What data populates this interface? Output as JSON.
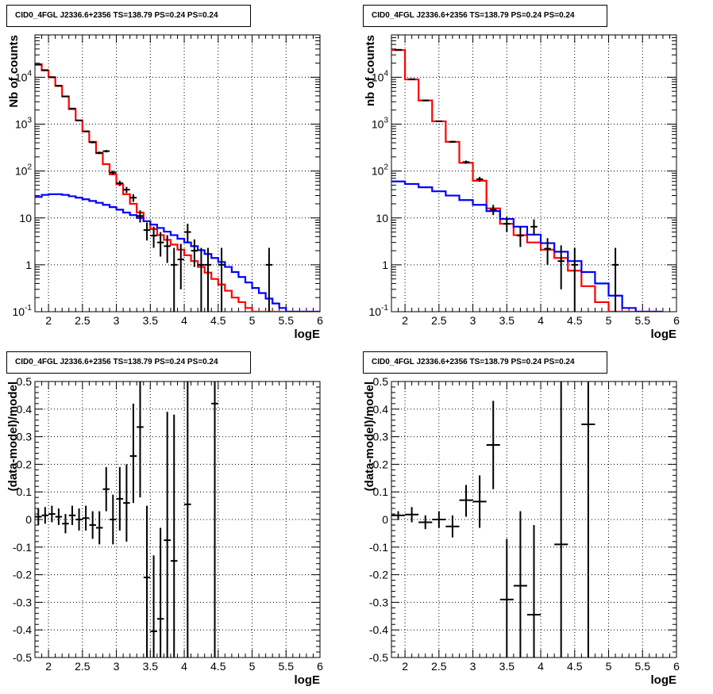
{
  "chart_data": [
    {
      "id": "top-left",
      "type": "line",
      "title": "CID0_4FGL J2336.6+2356 TS=138.79 PS=0.24 PS=0.24",
      "xlabel": "logE",
      "ylabel": "Nb of counts",
      "xlim": [
        1.8,
        6.0
      ],
      "ylim": [
        0.1,
        80000
      ],
      "yscale": "log",
      "grid": true,
      "x_ticks": [
        2,
        2.5,
        3,
        3.5,
        4,
        4.5,
        5,
        5.5,
        6
      ],
      "y_ticks": [
        {
          "value": 0.1,
          "label": "10^-1"
        },
        {
          "value": 1,
          "label": "1"
        },
        {
          "value": 10,
          "label": "10"
        },
        {
          "value": 100,
          "label": "10^2"
        },
        {
          "value": 1000,
          "label": "10^3"
        },
        {
          "value": 10000,
          "label": "10^4"
        }
      ],
      "bin_edges": [
        1.8,
        1.9,
        2.0,
        2.1,
        2.2,
        2.3,
        2.4,
        2.5,
        2.6,
        2.7,
        2.8,
        2.9,
        3.0,
        3.1,
        3.2,
        3.3,
        3.4,
        3.5,
        3.6,
        3.7,
        3.8,
        3.9,
        4.0,
        4.1,
        4.2,
        4.3,
        4.4,
        4.5,
        4.6,
        4.7,
        4.8,
        4.9,
        5.0,
        5.1,
        5.2,
        5.3,
        5.4,
        5.5,
        5.6,
        5.7,
        5.8,
        5.9,
        6.0
      ],
      "series": [
        {
          "color": "#ff0000",
          "style": "step",
          "values": [
            19000,
            14000,
            10000,
            6500,
            3900,
            2100,
            1200,
            700,
            420,
            240,
            140,
            85,
            52,
            32,
            20,
            13,
            8.5,
            5.8,
            4.3,
            3.4,
            2.7,
            2.1,
            1.6,
            1.2,
            0.9,
            0.68,
            0.5,
            0.38,
            0.28,
            0.2,
            0.16,
            0.12,
            0.1,
            0.1,
            0.1,
            0.1,
            0.1,
            0.1,
            0.1,
            0.1,
            0.1,
            0.1
          ]
        },
        {
          "color": "#0000ff",
          "style": "step",
          "values": [
            28,
            31,
            32,
            32,
            31,
            29,
            27,
            25,
            23,
            21,
            19,
            17,
            15,
            13,
            11.5,
            10,
            8.5,
            7.2,
            6.1,
            5.1,
            4.3,
            3.6,
            3.0,
            2.5,
            2.05,
            1.7,
            1.4,
            1.15,
            0.9,
            0.7,
            0.55,
            0.42,
            0.32,
            0.25,
            0.19,
            0.15,
            0.12,
            0.1,
            0.1,
            0.1,
            0.1,
            0.1
          ]
        }
      ],
      "points": [
        {
          "x": 1.85,
          "y": 18500,
          "lo": 18200,
          "hi": 18800
        },
        {
          "x": 1.95,
          "y": 14200,
          "lo": 14000,
          "hi": 14400
        },
        {
          "x": 2.05,
          "y": 10000,
          "lo": 9900,
          "hi": 10100
        },
        {
          "x": 2.15,
          "y": 6600,
          "lo": 6500,
          "hi": 6700
        },
        {
          "x": 2.25,
          "y": 3900,
          "lo": 3850,
          "hi": 3950
        },
        {
          "x": 2.35,
          "y": 2150,
          "lo": 2100,
          "hi": 2200
        },
        {
          "x": 2.45,
          "y": 1200,
          "lo": 1170,
          "hi": 1230
        },
        {
          "x": 2.55,
          "y": 700,
          "lo": 680,
          "hi": 720
        },
        {
          "x": 2.65,
          "y": 410,
          "lo": 390,
          "hi": 430
        },
        {
          "x": 2.75,
          "y": 245,
          "lo": 230,
          "hi": 260
        },
        {
          "x": 2.85,
          "y": 265,
          "lo": 250,
          "hi": 282
        },
        {
          "x": 2.95,
          "y": 93,
          "lo": 84,
          "hi": 102
        },
        {
          "x": 3.05,
          "y": 55,
          "lo": 48,
          "hi": 62
        },
        {
          "x": 3.15,
          "y": 40,
          "lo": 34,
          "hi": 46
        },
        {
          "x": 3.25,
          "y": 27,
          "lo": 22,
          "hi": 32
        },
        {
          "x": 3.35,
          "y": 11,
          "lo": 8,
          "hi": 14.5
        },
        {
          "x": 3.45,
          "y": 5.5,
          "lo": 3.3,
          "hi": 8
        },
        {
          "x": 3.55,
          "y": 4.2,
          "lo": 2.3,
          "hi": 6.5
        },
        {
          "x": 3.65,
          "y": 3,
          "lo": 1.5,
          "hi": 5
        },
        {
          "x": 3.75,
          "y": 2.5,
          "lo": 1.1,
          "hi": 4.3
        },
        {
          "x": 3.85,
          "y": 1,
          "lo": 0.1,
          "hi": 2.3
        },
        {
          "x": 3.95,
          "y": 1.3,
          "lo": 0.3,
          "hi": 2.8
        },
        {
          "x": 4.05,
          "y": 5,
          "lo": 3,
          "hi": 7.5
        },
        {
          "x": 4.15,
          "y": 2,
          "lo": 0.9,
          "hi": 3.5
        },
        {
          "x": 4.25,
          "y": 1,
          "lo": 0.1,
          "hi": 2.3
        },
        {
          "x": 4.35,
          "y": 1,
          "lo": 0.1,
          "hi": 2.3
        },
        {
          "x": 4.55,
          "y": 1,
          "lo": 0.1,
          "hi": 2.3
        },
        {
          "x": 5.25,
          "y": 1,
          "lo": 0.1,
          "hi": 2.3
        }
      ]
    },
    {
      "id": "top-right",
      "type": "line",
      "title": "CID0_4FGL J2336.6+2356 TS=138.79 PS=0.24 PS=0.24",
      "xlabel": "logE",
      "ylabel": "nb of counts",
      "xlim": [
        1.8,
        6.0
      ],
      "ylim": [
        0.1,
        80000
      ],
      "yscale": "log",
      "grid": true,
      "x_ticks": [
        2,
        2.5,
        3,
        3.5,
        4,
        4.5,
        5,
        5.5,
        6
      ],
      "y_ticks": [
        {
          "value": 0.1,
          "label": "10^-1"
        },
        {
          "value": 1,
          "label": "1"
        },
        {
          "value": 10,
          "label": "10"
        },
        {
          "value": 100,
          "label": "10^2"
        },
        {
          "value": 1000,
          "label": "10^3"
        },
        {
          "value": 10000,
          "label": "10^4"
        }
      ],
      "bin_edges": [
        1.8,
        2.0,
        2.2,
        2.4,
        2.6,
        2.8,
        3.0,
        3.2,
        3.4,
        3.6,
        3.8,
        4.0,
        4.2,
        4.4,
        4.6,
        4.8,
        5.0,
        5.2,
        5.4,
        5.6,
        5.8,
        6.0
      ],
      "series": [
        {
          "color": "#ff0000",
          "style": "step",
          "values": [
            38000,
            9000,
            3200,
            1150,
            420,
            150,
            62,
            16,
            7.5,
            4.3,
            3.0,
            2.1,
            1.4,
            0.75,
            0.35,
            0.16,
            0.1,
            0.1,
            0.1,
            0.1
          ]
        },
        {
          "color": "#0000ff",
          "style": "step",
          "values": [
            60,
            53,
            45,
            37,
            30,
            24,
            19,
            14,
            9.5,
            6.5,
            4.4,
            2.9,
            1.9,
            1.2,
            0.7,
            0.4,
            0.22,
            0.12,
            0.1,
            0.1
          ]
        }
      ],
      "points": [
        {
          "x": 1.9,
          "y": 38500,
          "lo": 38200,
          "hi": 38800
        },
        {
          "x": 2.1,
          "y": 9100,
          "lo": 9000,
          "hi": 9200
        },
        {
          "x": 2.3,
          "y": 3200,
          "lo": 3140,
          "hi": 3260
        },
        {
          "x": 2.5,
          "y": 1150,
          "lo": 1120,
          "hi": 1180
        },
        {
          "x": 2.7,
          "y": 420,
          "lo": 400,
          "hi": 440
        },
        {
          "x": 2.9,
          "y": 155,
          "lo": 143,
          "hi": 167
        },
        {
          "x": 3.1,
          "y": 67,
          "lo": 59,
          "hi": 75
        },
        {
          "x": 3.3,
          "y": 15,
          "lo": 11.5,
          "hi": 19
        },
        {
          "x": 3.5,
          "y": 7.5,
          "lo": 5,
          "hi": 10.5
        },
        {
          "x": 3.7,
          "y": 4.2,
          "lo": 2.4,
          "hi": 6.5
        },
        {
          "x": 3.9,
          "y": 6.5,
          "lo": 4.2,
          "hi": 9.3
        },
        {
          "x": 4.1,
          "y": 2.2,
          "lo": 1,
          "hi": 3.7
        },
        {
          "x": 4.3,
          "y": 1.2,
          "lo": 0.3,
          "hi": 2.6
        },
        {
          "x": 4.5,
          "y": 1,
          "lo": 0.1,
          "hi": 2.3
        },
        {
          "x": 5.1,
          "y": 1,
          "lo": 0.1,
          "hi": 2.3
        }
      ]
    },
    {
      "id": "bottom-left",
      "type": "scatter",
      "title": "CID0_4FGL J2336.6+2356 TS=138.79 PS=0.24 PS=0.24",
      "xlabel": "logE",
      "ylabel": "(data-model)/model",
      "xlim": [
        1.8,
        6.0
      ],
      "ylim": [
        -0.5,
        0.5
      ],
      "grid": true,
      "x_ticks": [
        2,
        2.5,
        3,
        3.5,
        4,
        4.5,
        5,
        5.5,
        6
      ],
      "y_ticks": [
        -0.5,
        -0.4,
        -0.3,
        -0.2,
        -0.1,
        0,
        0.1,
        0.2,
        0.3,
        0.4,
        0.5
      ],
      "xerr": 0.05,
      "points": [
        {
          "x": 1.85,
          "y": 0.01,
          "lo": -0.02,
          "hi": 0.04
        },
        {
          "x": 1.95,
          "y": 0.015,
          "lo": -0.015,
          "hi": 0.045
        },
        {
          "x": 2.05,
          "y": 0.02,
          "lo": -0.01,
          "hi": 0.05
        },
        {
          "x": 2.15,
          "y": 0.01,
          "lo": -0.02,
          "hi": 0.04
        },
        {
          "x": 2.25,
          "y": -0.015,
          "lo": -0.05,
          "hi": 0.02
        },
        {
          "x": 2.35,
          "y": 0.015,
          "lo": -0.02,
          "hi": 0.05
        },
        {
          "x": 2.45,
          "y": 0.0,
          "lo": -0.04,
          "hi": 0.04
        },
        {
          "x": 2.55,
          "y": 0.005,
          "lo": -0.04,
          "hi": 0.05
        },
        {
          "x": 2.65,
          "y": -0.02,
          "lo": -0.07,
          "hi": 0.03
        },
        {
          "x": 2.75,
          "y": -0.03,
          "lo": -0.09,
          "hi": 0.03
        },
        {
          "x": 2.85,
          "y": 0.11,
          "lo": 0.03,
          "hi": 0.19
        },
        {
          "x": 2.95,
          "y": 0.0,
          "lo": -0.09,
          "hi": 0.09
        },
        {
          "x": 3.05,
          "y": 0.075,
          "lo": -0.04,
          "hi": 0.19
        },
        {
          "x": 3.15,
          "y": 0.06,
          "lo": -0.08,
          "hi": 0.2
        },
        {
          "x": 3.25,
          "y": 0.23,
          "lo": 0.06,
          "hi": 0.42
        },
        {
          "x": 3.35,
          "y": 0.335,
          "lo": 0.08,
          "hi": 0.6
        },
        {
          "x": 3.45,
          "y": -0.21,
          "lo": -0.5,
          "hi": 0.05
        },
        {
          "x": 3.55,
          "y": -0.405,
          "lo": -0.5,
          "hi": -0.13
        },
        {
          "x": 3.65,
          "y": -0.36,
          "lo": -0.5,
          "hi": -0.03
        },
        {
          "x": 3.75,
          "y": -0.075,
          "lo": -0.5,
          "hi": 0.39
        },
        {
          "x": 3.85,
          "y": -0.15,
          "lo": -0.5,
          "hi": 0.38
        },
        {
          "x": 4.05,
          "y": 0.055,
          "lo": -0.5,
          "hi": 0.6
        },
        {
          "x": 4.45,
          "y": 0.42,
          "lo": -0.5,
          "hi": 0.6
        }
      ]
    },
    {
      "id": "bottom-right",
      "type": "scatter",
      "title": "CID0_4FGL J2336.6+2356 TS=138.79 PS=0.24 PS=0.24",
      "xlabel": "logE",
      "ylabel": "(data-model)/model",
      "xlim": [
        1.8,
        6.0
      ],
      "ylim": [
        -0.5,
        0.5
      ],
      "grid": true,
      "x_ticks": [
        2,
        2.5,
        3,
        3.5,
        4,
        4.5,
        5,
        5.5,
        6
      ],
      "y_ticks": [
        -0.5,
        -0.4,
        -0.3,
        -0.2,
        -0.1,
        0,
        0.1,
        0.2,
        0.3,
        0.4,
        0.5
      ],
      "xerr": 0.1,
      "points": [
        {
          "x": 1.9,
          "y": 0.015,
          "lo": 0.0,
          "hi": 0.03
        },
        {
          "x": 2.1,
          "y": 0.018,
          "lo": -0.01,
          "hi": 0.045
        },
        {
          "x": 2.3,
          "y": -0.01,
          "lo": -0.035,
          "hi": 0.015
        },
        {
          "x": 2.5,
          "y": 0.0,
          "lo": -0.03,
          "hi": 0.03
        },
        {
          "x": 2.7,
          "y": -0.025,
          "lo": -0.065,
          "hi": 0.015
        },
        {
          "x": 2.9,
          "y": 0.07,
          "lo": 0.01,
          "hi": 0.125
        },
        {
          "x": 3.1,
          "y": 0.065,
          "lo": -0.03,
          "hi": 0.16
        },
        {
          "x": 3.3,
          "y": 0.27,
          "lo": 0.11,
          "hi": 0.43
        },
        {
          "x": 3.5,
          "y": -0.29,
          "lo": -0.5,
          "hi": -0.07
        },
        {
          "x": 3.7,
          "y": -0.24,
          "lo": -0.5,
          "hi": 0.03
        },
        {
          "x": 3.9,
          "y": -0.345,
          "lo": -0.5,
          "hi": -0.02
        },
        {
          "x": 4.3,
          "y": -0.09,
          "lo": -0.5,
          "hi": 0.6
        },
        {
          "x": 4.7,
          "y": 0.345,
          "lo": -0.5,
          "hi": 0.6
        }
      ]
    }
  ]
}
